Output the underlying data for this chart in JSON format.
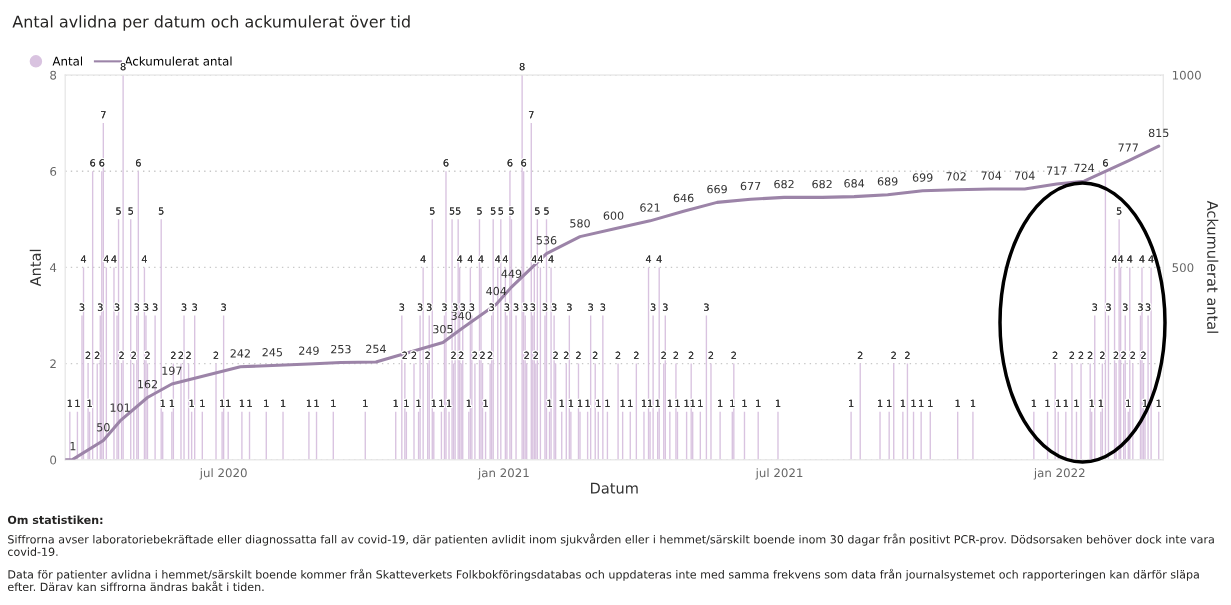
{
  "chart_data": {
    "type": "bar",
    "title": "Antal avlidna per datum och ackumulerat över tid",
    "xlabel": "Datum",
    "ylabel": "Antal",
    "y2label": "Ackumulerat antal",
    "xlim": [
      "2020-03-19",
      "2022-03-10"
    ],
    "xticks": [
      {
        "value": "2020-07-01",
        "label": "jul 2020"
      },
      {
        "value": "2021-01-01",
        "label": "jan 2021"
      },
      {
        "value": "2021-07-01",
        "label": "jul 2021"
      },
      {
        "value": "2022-01-01",
        "label": "jan 2022"
      }
    ],
    "ylim": [
      0,
      8
    ],
    "yticks": [
      0,
      2,
      4,
      6,
      8
    ],
    "y2lim": [
      0,
      1000
    ],
    "y2ticks": [
      500,
      1000
    ],
    "grid": "y",
    "legend": "top left",
    "data_labels": true,
    "series": [
      {
        "name": "Antal",
        "color": "#d9c3e0",
        "x": [
          "2020-03-22",
          "2020-03-27",
          "2020-03-30",
          "2020-03-31",
          "2020-04-03",
          "2020-04-04",
          "2020-04-06",
          "2020-04-09",
          "2020-04-11",
          "2020-04-12",
          "2020-04-13",
          "2020-04-15",
          "2020-04-20",
          "2020-04-22",
          "2020-04-23",
          "2020-04-25",
          "2020-04-26",
          "2020-05-01",
          "2020-05-03",
          "2020-05-05",
          "2020-05-06",
          "2020-05-10",
          "2020-05-11",
          "2020-05-12",
          "2020-05-17",
          "2020-05-21",
          "2020-05-22",
          "2020-05-28",
          "2020-05-29",
          "2020-06-03",
          "2020-06-05",
          "2020-06-08",
          "2020-06-10",
          "2020-06-12",
          "2020-06-17",
          "2020-06-26",
          "2020-06-30",
          "2020-07-01",
          "2020-07-04",
          "2020-07-13",
          "2020-07-18",
          "2020-07-29",
          "2020-08-09",
          "2020-08-26",
          "2020-08-31",
          "2020-09-11",
          "2020-10-02",
          "2020-10-22",
          "2020-10-26",
          "2020-10-28",
          "2020-10-29",
          "2020-11-03",
          "2020-11-06",
          "2020-11-07",
          "2020-11-09",
          "2020-11-12",
          "2020-11-13",
          "2020-11-15",
          "2020-11-16",
          "2020-11-21",
          "2020-11-23",
          "2020-11-24",
          "2020-11-26",
          "2020-11-28",
          "2020-11-29",
          "2020-11-30",
          "2020-12-02",
          "2020-12-03",
          "2020-12-04",
          "2020-12-05",
          "2020-12-09",
          "2020-12-10",
          "2020-12-11",
          "2020-12-13",
          "2020-12-16",
          "2020-12-17",
          "2020-12-18",
          "2020-12-20",
          "2020-12-23",
          "2020-12-24",
          "2020-12-25",
          "2020-12-28",
          "2020-12-30",
          "2021-01-02",
          "2021-01-03",
          "2021-01-05",
          "2021-01-06",
          "2021-01-09",
          "2021-01-13",
          "2021-01-14",
          "2021-01-15",
          "2021-01-16",
          "2021-01-19",
          "2021-01-20",
          "2021-01-21",
          "2021-01-22",
          "2021-01-23",
          "2021-01-25",
          "2021-01-28",
          "2021-01-29",
          "2021-01-31",
          "2021-02-01",
          "2021-02-03",
          "2021-02-04",
          "2021-02-08",
          "2021-02-11",
          "2021-02-13",
          "2021-02-14",
          "2021-02-19",
          "2021-02-20",
          "2021-02-25",
          "2021-02-27",
          "2021-03-02",
          "2021-03-04",
          "2021-03-07",
          "2021-03-10",
          "2021-03-17",
          "2021-03-20",
          "2021-03-25",
          "2021-03-29",
          "2021-04-03",
          "2021-04-06",
          "2021-04-07",
          "2021-04-09",
          "2021-04-12",
          "2021-04-13",
          "2021-04-16",
          "2021-04-17",
          "2021-04-20",
          "2021-04-24",
          "2021-04-25",
          "2021-05-01",
          "2021-05-04",
          "2021-05-05",
          "2021-05-10",
          "2021-05-14",
          "2021-05-17",
          "2021-05-23",
          "2021-05-31",
          "2021-06-01",
          "2021-06-08",
          "2021-06-17",
          "2021-06-30",
          "2021-08-17",
          "2021-08-23",
          "2021-09-05",
          "2021-09-11",
          "2021-09-14",
          "2021-09-20",
          "2021-09-23",
          "2021-09-27",
          "2021-10-02",
          "2021-10-08",
          "2021-10-26",
          "2021-11-05",
          "2021-12-15",
          "2021-12-24",
          "2021-12-29",
          "2021-12-31",
          "2022-01-05",
          "2022-01-09",
          "2022-01-12",
          "2022-01-15",
          "2022-01-21",
          "2022-01-22",
          "2022-01-24",
          "2022-01-28",
          "2022-01-29",
          "2022-01-31",
          "2022-02-02",
          "2022-02-06",
          "2022-02-07",
          "2022-02-09",
          "2022-02-10",
          "2022-02-12",
          "2022-02-13",
          "2022-02-15",
          "2022-02-16",
          "2022-02-18",
          "2022-02-23",
          "2022-02-24",
          "2022-02-25",
          "2022-02-26",
          "2022-02-28",
          "2022-03-02",
          "2022-03-07"
        ],
        "values": [
          1,
          1,
          3,
          4,
          2,
          1,
          6,
          2,
          3,
          6,
          7,
          4,
          4,
          3,
          5,
          2,
          8,
          5,
          2,
          3,
          6,
          4,
          3,
          2,
          3,
          5,
          1,
          1,
          2,
          2,
          3,
          2,
          1,
          3,
          1,
          2,
          1,
          3,
          1,
          1,
          1,
          1,
          1,
          1,
          1,
          1,
          1,
          1,
          3,
          2,
          1,
          2,
          1,
          3,
          4,
          2,
          3,
          5,
          1,
          1,
          3,
          6,
          1,
          5,
          2,
          3,
          5,
          4,
          2,
          3,
          1,
          4,
          3,
          2,
          5,
          4,
          2,
          1,
          2,
          3,
          5,
          4,
          5,
          4,
          3,
          6,
          5,
          3,
          8,
          6,
          3,
          2,
          7,
          3,
          4,
          2,
          5,
          4,
          3,
          5,
          1,
          4,
          3,
          2,
          1,
          2,
          3,
          1,
          2,
          1,
          1,
          3,
          2,
          1,
          3,
          1,
          2,
          1,
          1,
          2,
          1,
          4,
          1,
          3,
          1,
          4,
          2,
          3,
          1,
          2,
          1,
          1,
          2,
          1,
          1,
          3,
          2,
          1,
          1,
          2,
          1,
          1,
          1,
          1,
          2,
          1,
          1,
          2,
          1,
          2,
          1,
          1,
          1,
          1,
          1,
          1,
          1,
          2,
          1,
          1,
          2,
          1,
          2,
          2,
          1,
          3,
          1,
          2,
          6,
          3,
          4,
          2,
          5,
          4,
          2,
          3,
          1,
          4,
          2,
          3,
          4,
          2,
          1,
          3,
          4,
          1
        ]
      },
      {
        "name": "Ackumulerat antal",
        "type": "line",
        "axis": "y2",
        "color": "#9c84a8",
        "x": [
          "2020-03-19",
          "2020-03-24",
          "2020-04-13",
          "2020-04-24",
          "2020-05-12",
          "2020-05-28",
          "2020-07-12",
          "2020-08-02",
          "2020-08-26",
          "2020-09-16",
          "2020-10-09",
          "2020-11-22",
          "2020-12-04",
          "2020-12-27",
          "2021-01-06",
          "2021-01-29",
          "2021-02-20",
          "2021-03-14",
          "2021-04-07",
          "2021-04-29",
          "2021-05-21",
          "2021-06-12",
          "2021-07-04",
          "2021-07-29",
          "2021-08-19",
          "2021-09-10",
          "2021-10-03",
          "2021-10-25",
          "2021-11-17",
          "2021-12-09",
          "2021-12-30",
          "2022-01-17",
          "2022-02-15",
          "2022-03-07"
        ],
        "values": [
          0,
          1,
          50,
          101,
          162,
          197,
          242,
          245,
          249,
          253,
          254,
          305,
          340,
          404,
          449,
          536,
          580,
          600,
          621,
          646,
          669,
          677,
          682,
          682,
          684,
          689,
          699,
          702,
          704,
          704,
          717,
          724,
          777,
          815
        ],
        "value_labels": [
          null,
          "1",
          "50",
          "101",
          "162",
          "197",
          "242",
          "245",
          "249",
          "253",
          "254",
          "305",
          "340",
          "404",
          "449",
          "536",
          "580",
          "600",
          "621",
          "646",
          "669",
          "677",
          "682",
          "682",
          "684",
          "689",
          "699",
          "702",
          "704",
          "704",
          "717",
          "724",
          "777",
          "815"
        ]
      }
    ],
    "annotations": [
      "Om statistiken:",
      "Siffrorna avser laboratoriebekräftade eller diagnossatta fall av covid-19, där patienten avlidit inom sjukvården eller i hemmet/särskilt boende inom 30 dagar från positivt PCR-prov. Dödsorsaken behöver dock inte vara covid-19.",
      "Data för patienter avlidna i hemmet/särskilt boende kommer från Skatteverkets Folkbokföringsdatabas och uppdateras inte med samma frekvens som data från journalsystemet och rapporteringen kan därför släpa efter. Därav kan siffrorna ändras bakåt i tiden."
    ]
  }
}
